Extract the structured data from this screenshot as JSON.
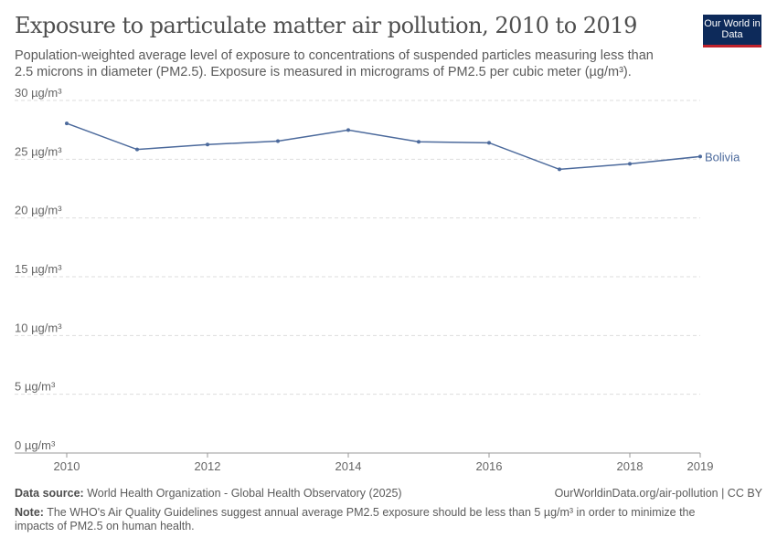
{
  "header": {
    "title": "Exposure to particulate matter air pollution, 2010 to 2019",
    "subtitle": "Population-weighted average level of exposure to concentrations of suspended particles measuring less than 2.5 microns in diameter (PM2.5). Exposure is measured in micrograms of PM2.5 per cubic meter (µg/m³).",
    "logo": "Our World in Data"
  },
  "chart_data": {
    "type": "line",
    "x": [
      2010,
      2011,
      2012,
      2013,
      2014,
      2015,
      2016,
      2017,
      2018,
      2019
    ],
    "series": [
      {
        "name": "Bolivia",
        "values": [
          28.05,
          25.83,
          26.25,
          26.54,
          27.48,
          26.48,
          26.4,
          24.14,
          24.61,
          25.23
        ],
        "color": "#4c6a9c"
      }
    ],
    "ylim": [
      0,
      30
    ],
    "yticks": [
      0,
      5,
      10,
      15,
      20,
      25,
      30
    ],
    "ytick_labels": [
      "0 µg/m³",
      "5 µg/m³",
      "10 µg/m³",
      "15 µg/m³",
      "20 µg/m³",
      "25 µg/m³",
      "30 µg/m³"
    ],
    "xticks": [
      2010,
      2012,
      2014,
      2016,
      2018,
      2019
    ],
    "xtick_labels": [
      "2010",
      "2012",
      "2014",
      "2016",
      "2018",
      "2019"
    ],
    "grid": true
  },
  "footer": {
    "source_label": "Data source:",
    "source": "World Health Organization - Global Health Observatory (2025)",
    "url": "OurWorldinData.org/air-pollution | CC BY",
    "note_label": "Note:",
    "note": "The WHO's Air Quality Guidelines suggest annual average PM2.5 exposure should be less than 5 µg/m³ in order to minimize the impacts of PM2.5 on human health."
  }
}
